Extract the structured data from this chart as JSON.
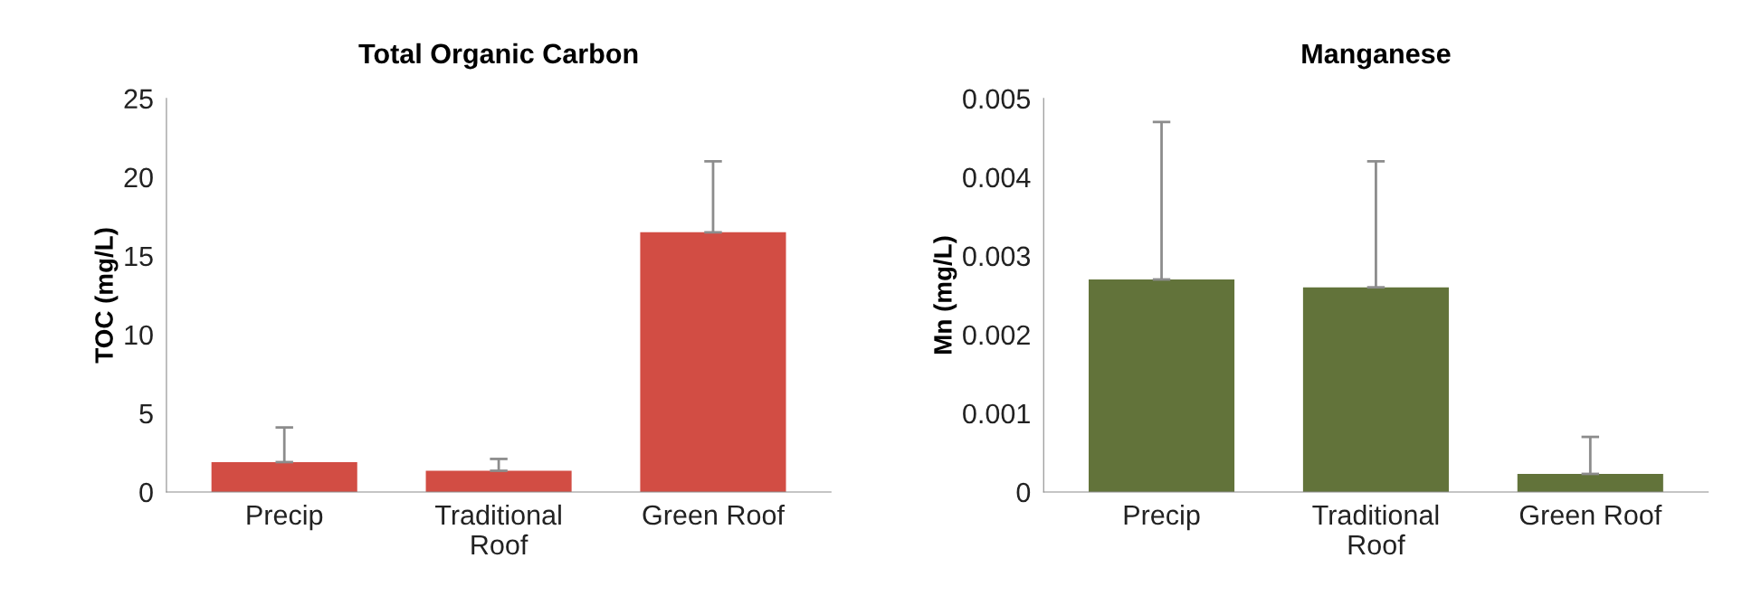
{
  "chart_data": [
    {
      "type": "bar",
      "title": "Total Organic Carbon",
      "ylabel": "TOC (mg/L)",
      "categories": [
        "Precip",
        "Traditional\nRoof",
        "Green Roof"
      ],
      "values": [
        1.9,
        1.35,
        16.5
      ],
      "errors": [
        [
          1.9,
          4.1
        ],
        [
          1.35,
          2.1
        ],
        [
          16.5,
          21.0
        ]
      ],
      "color": "#d24d44",
      "ylim": [
        0,
        25
      ],
      "yticks": [
        0,
        5,
        10,
        15,
        20,
        25
      ],
      "grid": false
    },
    {
      "type": "bar",
      "title": "Manganese",
      "ylabel": "Mn (mg/L)",
      "categories": [
        "Precip",
        "Traditional\nRoof",
        "Green Roof"
      ],
      "values": [
        0.0027,
        0.0026,
        0.00023
      ],
      "errors": [
        [
          0.0027,
          0.0047
        ],
        [
          0.0026,
          0.0042
        ],
        [
          0.00023,
          0.0007
        ]
      ],
      "color": "#62733a",
      "ylim": [
        0,
        0.005
      ],
      "yticks": [
        0,
        0.001,
        0.002,
        0.003,
        0.004,
        0.005
      ],
      "grid": false
    }
  ]
}
